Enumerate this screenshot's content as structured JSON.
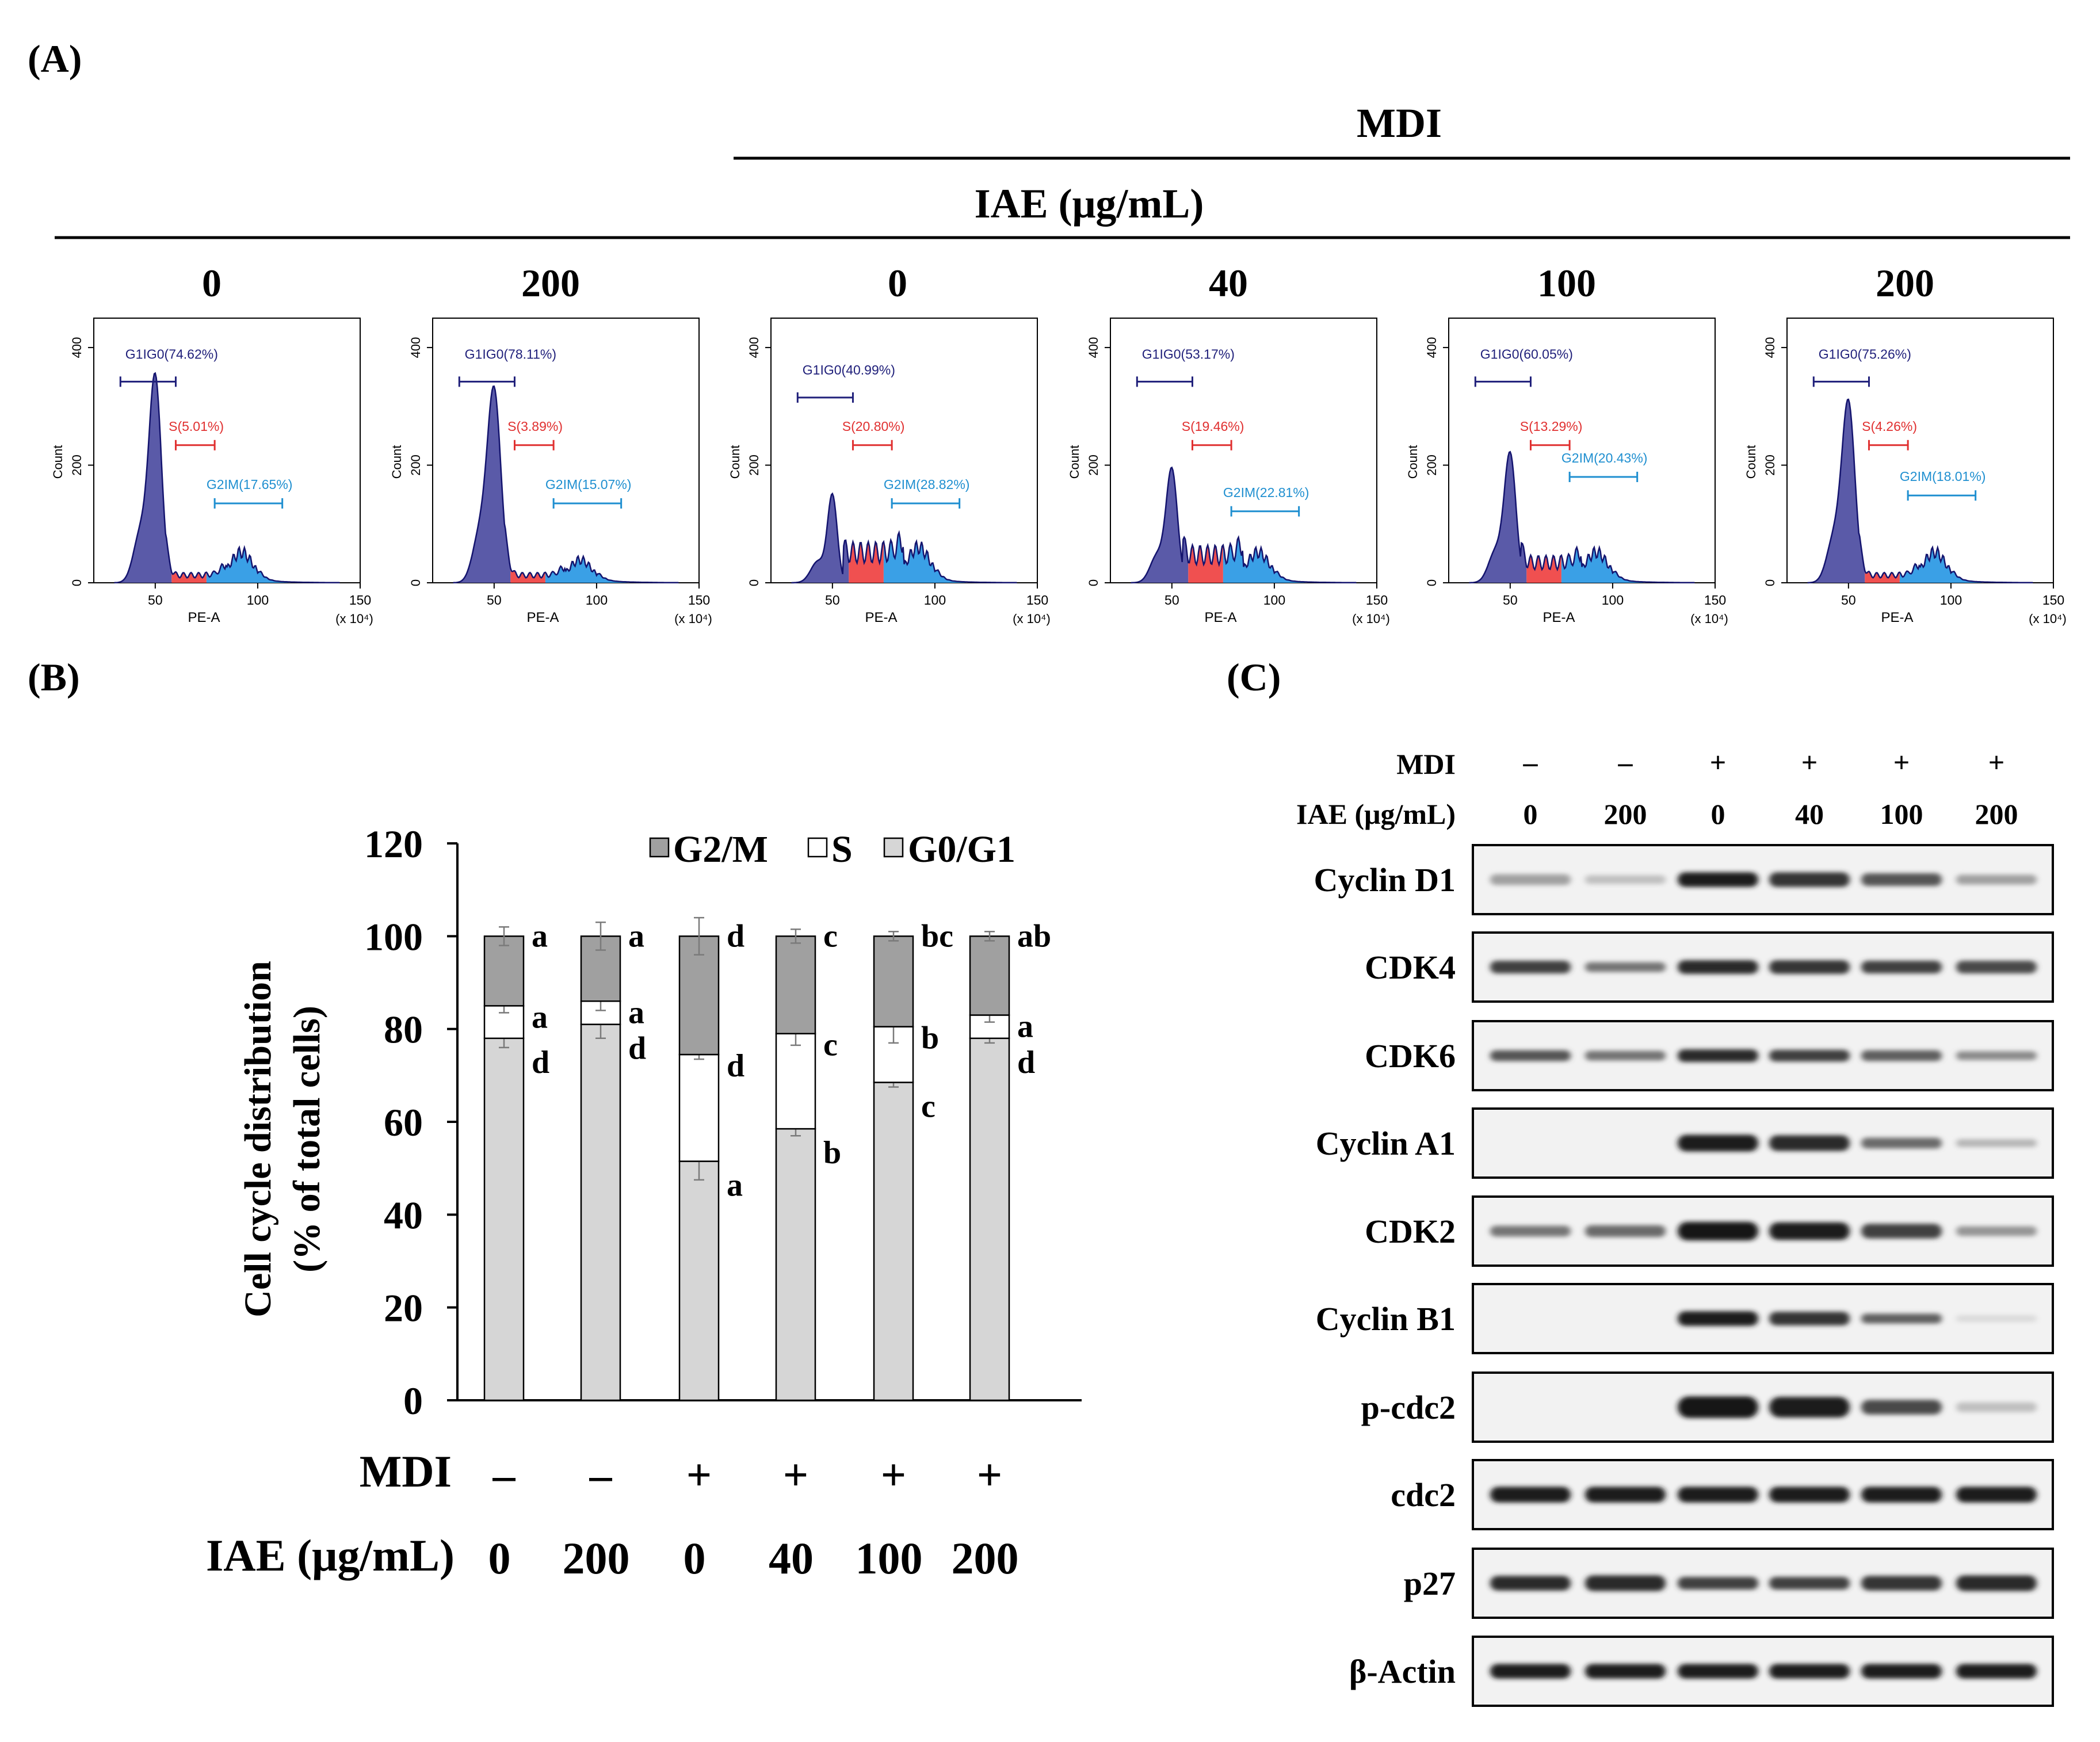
{
  "panels": {
    "a": "(A)",
    "b": "(B)",
    "c": "(C)"
  },
  "flow": {
    "mdi_header": "MDI",
    "iae_header": "IAE (μg/mL)",
    "x_axis_label": "PE-A",
    "y_axis_label": "Count",
    "x_scale_note": "(x 10⁴)",
    "x_ticks": [
      "50",
      "100",
      "150"
    ],
    "y_ticks": [
      "0",
      "200",
      "400"
    ],
    "colors": {
      "g1": "#5a5aa8",
      "s": "#f05050",
      "g2": "#3aa0e6",
      "g1_text": "#1f1f7a",
      "s_text": "#e03030",
      "g2_text": "#1f8fd0"
    },
    "histograms": [
      {
        "dose": "0",
        "g1_label": "G1IG0(74.62%)",
        "s_label": "S(5.01%)",
        "g2_label": "G2IM(17.65%)",
        "g1_peak": 0.8,
        "g1_width": 0.55,
        "s_level": 0.03,
        "g2_peak": 0.12,
        "bar_g1_y": 0.76,
        "bar_s_y": 0.52,
        "bar_g2_y": 0.3
      },
      {
        "dose": "200",
        "g1_label": "G1IG0(78.11%)",
        "s_label": "S(3.89%)",
        "g2_label": "G2IM(15.07%)",
        "g1_peak": 0.75,
        "g1_width": 0.5,
        "s_level": 0.03,
        "g2_peak": 0.09,
        "bar_g1_y": 0.76,
        "bar_s_y": 0.52,
        "bar_g2_y": 0.3
      },
      {
        "dose": "0",
        "g1_label": "G1IG0(40.99%)",
        "s_label": "S(20.80%)",
        "g2_label": "G2IM(28.82%)",
        "g1_peak": 0.34,
        "g1_width": 0.7,
        "s_level": 0.12,
        "g2_peak": 0.14,
        "bar_g1_y": 0.7,
        "bar_s_y": 0.52,
        "bar_g2_y": 0.3
      },
      {
        "dose": "40",
        "g1_label": "G1IG0(53.17%)",
        "s_label": "S(19.46%)",
        "g2_label": "G2IM(22.81%)",
        "g1_peak": 0.44,
        "g1_width": 0.6,
        "s_level": 0.11,
        "g2_peak": 0.12,
        "bar_g1_y": 0.76,
        "bar_s_y": 0.52,
        "bar_g2_y": 0.27
      },
      {
        "dose": "100",
        "g1_label": "G1IG0(60.05%)",
        "s_label": "S(13.29%)",
        "g2_label": "G2IM(20.43%)",
        "g1_peak": 0.5,
        "g1_width": 0.58,
        "s_level": 0.08,
        "g2_peak": 0.12,
        "bar_g1_y": 0.76,
        "bar_s_y": 0.52,
        "bar_g2_y": 0.4
      },
      {
        "dose": "200",
        "g1_label": "G1IG0(75.26%)",
        "s_label": "S(4.26%)",
        "g2_label": "G2IM(18.01%)",
        "g1_peak": 0.7,
        "g1_width": 0.52,
        "s_level": 0.03,
        "g2_peak": 0.12,
        "bar_g1_y": 0.76,
        "bar_s_y": 0.52,
        "bar_g2_y": 0.33
      }
    ]
  },
  "chart_data": {
    "type": "bar",
    "stacked": true,
    "ylabel_line1": "Cell cycle distribution",
    "ylabel_line2": "(% of total cells)",
    "ylim": [
      0,
      120
    ],
    "yticks": [
      0,
      20,
      40,
      60,
      80,
      100,
      120
    ],
    "legend": [
      {
        "name": "G2/M",
        "color": "#a0a0a0"
      },
      {
        "name": "S",
        "color": "#ffffff"
      },
      {
        "name": "G0/G1",
        "color": "#d6d6d6"
      }
    ],
    "row_labels": {
      "mdi": "MDI",
      "iae": "IAE (μg/mL)"
    },
    "categories": [
      {
        "mdi": "–",
        "iae": "0"
      },
      {
        "mdi": "–",
        "iae": "200"
      },
      {
        "mdi": "+",
        "iae": "0"
      },
      {
        "mdi": "+",
        "iae": "40"
      },
      {
        "mdi": "+",
        "iae": "100"
      },
      {
        "mdi": "+",
        "iae": "200"
      }
    ],
    "series": [
      {
        "name": "G0/G1",
        "values": [
          78,
          81,
          51.5,
          58.5,
          68.5,
          78
        ],
        "errors": [
          2,
          3,
          4,
          1.5,
          1,
          1
        ],
        "letters": [
          "d",
          "d",
          "a",
          "b",
          "c",
          "d"
        ]
      },
      {
        "name": "S",
        "values": [
          7,
          5,
          23,
          20.5,
          12,
          5
        ],
        "errors": [
          1.5,
          2,
          1,
          2.5,
          3.5,
          1.5
        ],
        "letters": [
          "a",
          "a",
          "d",
          "c",
          "b",
          "a"
        ]
      },
      {
        "name": "G2/M",
        "values": [
          15,
          14,
          25.5,
          21,
          19.5,
          17
        ],
        "errors": [
          2,
          3,
          4,
          1.5,
          1,
          1
        ],
        "letters": [
          "a",
          "a",
          "d",
          "c",
          "bc",
          "ab"
        ]
      }
    ]
  },
  "western": {
    "header_mdi": "MDI",
    "header_iae": "IAE (μg/mL)",
    "mdi": [
      "–",
      "–",
      "+",
      "+",
      "+",
      "+"
    ],
    "iae": [
      "0",
      "200",
      "0",
      "40",
      "100",
      "200"
    ],
    "blots": [
      {
        "label": "Cyclin D1",
        "intensity": [
          0.35,
          0.2,
          0.95,
          0.85,
          0.7,
          0.35
        ],
        "thickness": [
          0.55,
          0.45,
          0.75,
          0.75,
          0.65,
          0.5
        ]
      },
      {
        "label": "CDK4",
        "intensity": [
          0.8,
          0.55,
          0.9,
          0.85,
          0.8,
          0.75
        ],
        "thickness": [
          0.65,
          0.5,
          0.7,
          0.7,
          0.65,
          0.65
        ]
      },
      {
        "label": "CDK6",
        "intensity": [
          0.7,
          0.55,
          0.9,
          0.8,
          0.65,
          0.45
        ],
        "thickness": [
          0.55,
          0.5,
          0.65,
          0.6,
          0.55,
          0.45
        ]
      },
      {
        "label": "Cyclin A1",
        "intensity": [
          0.0,
          0.0,
          0.95,
          0.9,
          0.6,
          0.25
        ],
        "thickness": [
          0.5,
          0.5,
          0.85,
          0.8,
          0.55,
          0.4
        ]
      },
      {
        "label": "CDK2",
        "intensity": [
          0.55,
          0.6,
          1.0,
          0.95,
          0.8,
          0.4
        ],
        "thickness": [
          0.55,
          0.6,
          0.95,
          0.9,
          0.75,
          0.5
        ]
      },
      {
        "label": "Cyclin B1",
        "intensity": [
          0.0,
          0.0,
          0.95,
          0.85,
          0.65,
          0.08
        ],
        "thickness": [
          0.5,
          0.5,
          0.75,
          0.7,
          0.5,
          0.35
        ]
      },
      {
        "label": "p-cdc2",
        "intensity": [
          0.0,
          0.0,
          1.0,
          0.95,
          0.75,
          0.2
        ],
        "thickness": [
          0.5,
          0.5,
          1.1,
          1.05,
          0.75,
          0.5
        ]
      },
      {
        "label": "cdc2",
        "intensity": [
          0.95,
          0.95,
          0.95,
          0.95,
          0.95,
          0.95
        ],
        "thickness": [
          0.8,
          0.8,
          0.8,
          0.8,
          0.8,
          0.8
        ]
      },
      {
        "label": "p27",
        "intensity": [
          0.9,
          0.9,
          0.8,
          0.8,
          0.85,
          0.9
        ],
        "thickness": [
          0.75,
          0.8,
          0.65,
          0.65,
          0.75,
          0.8
        ]
      },
      {
        "label": "β-Actin",
        "intensity": [
          0.95,
          0.95,
          0.95,
          0.95,
          0.95,
          0.95
        ],
        "thickness": [
          0.75,
          0.75,
          0.75,
          0.75,
          0.75,
          0.75
        ]
      }
    ]
  }
}
